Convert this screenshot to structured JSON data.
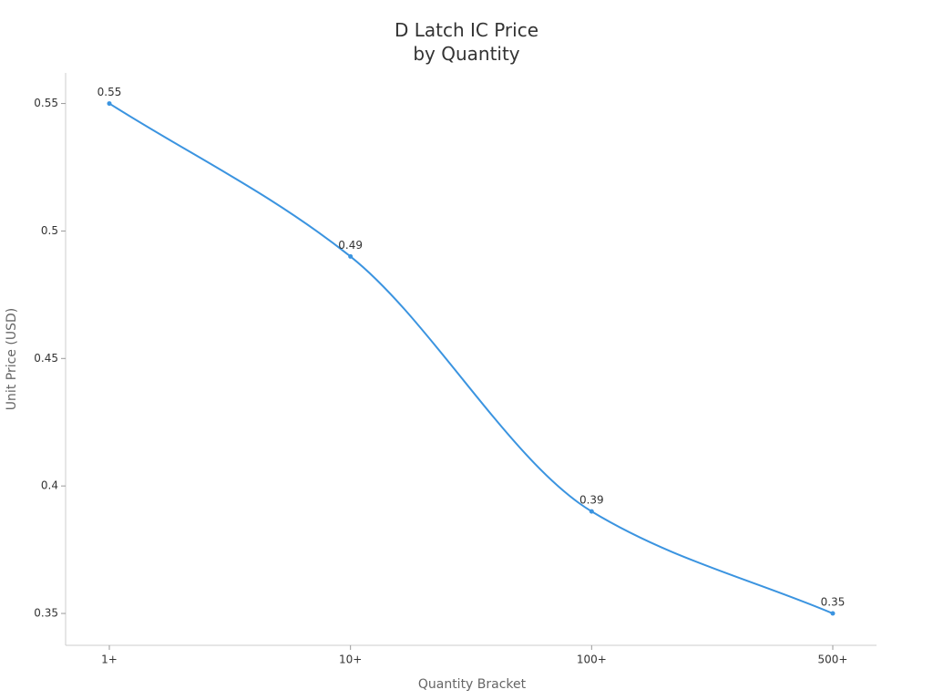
{
  "chart_data": {
    "type": "line",
    "title": "D Latch IC Price\nby Quantity",
    "x_label": "Quantity Bracket",
    "y_label": "Unit Price (USD)",
    "categories": [
      "1+",
      "10+",
      "100+",
      "500+"
    ],
    "values": [
      0.55,
      0.49,
      0.39,
      0.35
    ],
    "color": "#3b94e0",
    "ylim": [
      0.3375,
      0.562
    ],
    "yticks": [
      0.35,
      0.4,
      0.45,
      0.5,
      0.55
    ],
    "grid": false
  }
}
